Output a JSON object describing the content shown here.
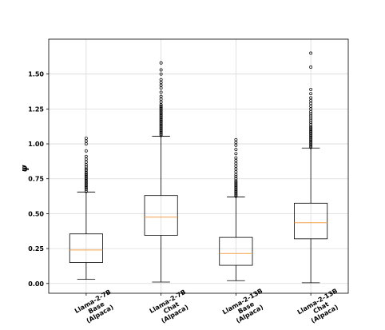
{
  "chart_data": {
    "type": "boxplot",
    "ylabel": "ψ",
    "ylim": [
      -0.07,
      1.75
    ],
    "yticks": [
      "0.00",
      "0.25",
      "0.50",
      "0.75",
      "1.00",
      "1.25",
      "1.50"
    ],
    "grid": true,
    "colors": {
      "box": "#000000",
      "median": "#f5a04a",
      "grid": "#d9d9d9"
    },
    "categories": [
      {
        "lines": [
          "Llama-2-7B",
          "Base",
          "(Alpaca)"
        ]
      },
      {
        "lines": [
          "Llama-2-7B",
          "Chat",
          "(Alpaca)"
        ]
      },
      {
        "lines": [
          "Llama-2-13B",
          "Base",
          "(Alpaca)"
        ]
      },
      {
        "lines": [
          "Llama-2-13B",
          "Chat",
          "(Alpaca)"
        ]
      }
    ],
    "boxes": [
      {
        "whisker_low": 0.03,
        "q1": 0.15,
        "median": 0.24,
        "q3": 0.355,
        "whisker_high": 0.655,
        "fliers": [
          0.66,
          0.675,
          0.685,
          0.695,
          0.705,
          0.715,
          0.725,
          0.735,
          0.745,
          0.755,
          0.765,
          0.775,
          0.785,
          0.795,
          0.81,
          0.82,
          0.835,
          0.85,
          0.87,
          0.89,
          0.91,
          0.95,
          1.0,
          1.02,
          1.04
        ]
      },
      {
        "whisker_low": 0.01,
        "q1": 0.345,
        "median": 0.475,
        "q3": 0.63,
        "whisker_high": 1.055,
        "fliers": [
          1.06,
          1.07,
          1.08,
          1.09,
          1.1,
          1.11,
          1.12,
          1.13,
          1.14,
          1.15,
          1.16,
          1.17,
          1.18,
          1.19,
          1.2,
          1.21,
          1.22,
          1.23,
          1.24,
          1.25,
          1.26,
          1.27,
          1.28,
          1.3,
          1.32,
          1.34,
          1.37,
          1.4,
          1.42,
          1.44,
          1.46,
          1.5,
          1.53,
          1.58
        ]
      },
      {
        "whisker_low": 0.02,
        "q1": 0.13,
        "median": 0.215,
        "q3": 0.33,
        "whisker_high": 0.62,
        "fliers": [
          0.625,
          0.635,
          0.645,
          0.655,
          0.665,
          0.675,
          0.685,
          0.695,
          0.705,
          0.715,
          0.725,
          0.735,
          0.75,
          0.765,
          0.78,
          0.8,
          0.82,
          0.84,
          0.86,
          0.88,
          0.9,
          0.93,
          0.96,
          0.99,
          1.01,
          1.03
        ]
      },
      {
        "whisker_low": 0.005,
        "q1": 0.32,
        "median": 0.435,
        "q3": 0.575,
        "whisker_high": 0.97,
        "fliers": [
          0.975,
          0.985,
          0.995,
          1.005,
          1.015,
          1.025,
          1.035,
          1.045,
          1.055,
          1.065,
          1.075,
          1.085,
          1.095,
          1.105,
          1.115,
          1.125,
          1.14,
          1.155,
          1.17,
          1.185,
          1.2,
          1.215,
          1.23,
          1.25,
          1.27,
          1.29,
          1.31,
          1.33,
          1.36,
          1.39,
          1.55,
          1.65
        ]
      }
    ]
  }
}
